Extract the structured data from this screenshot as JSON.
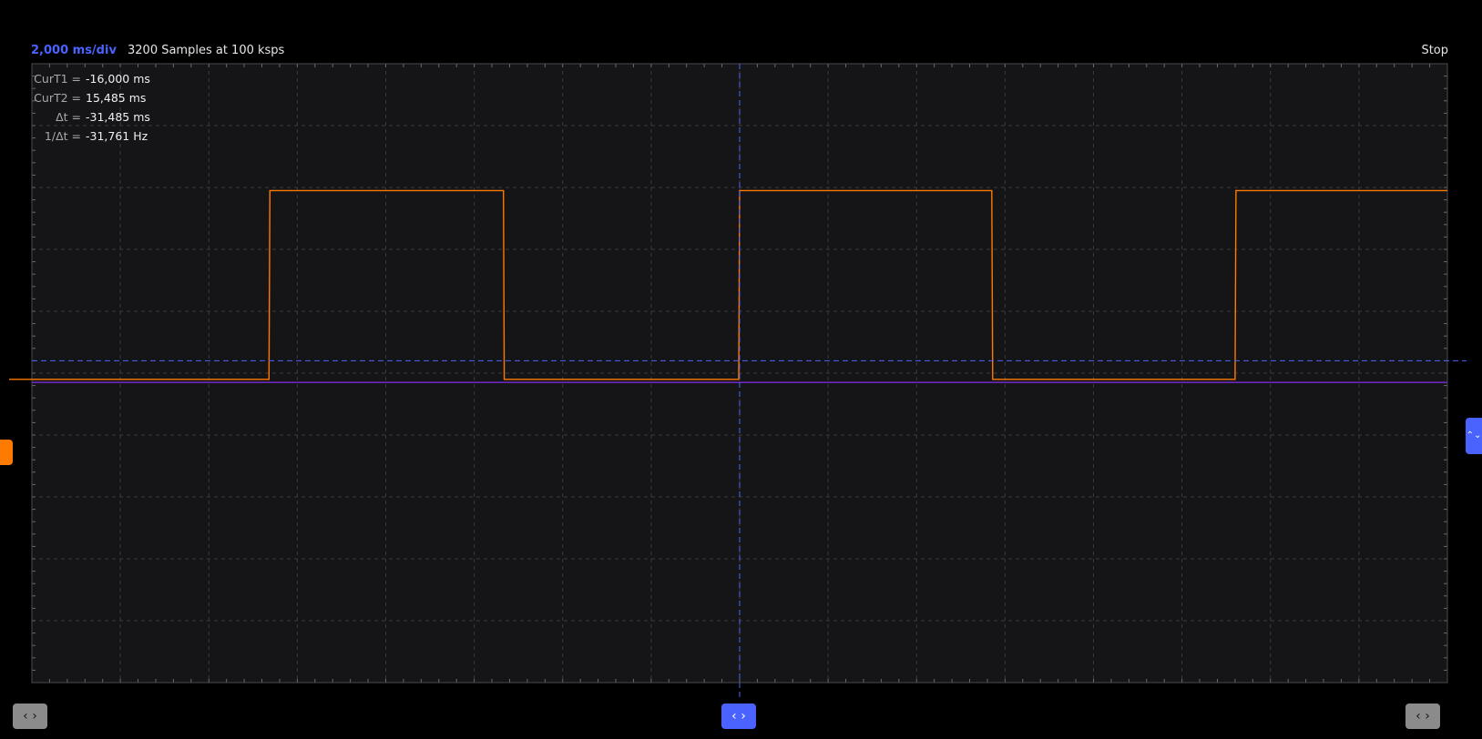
{
  "header": {
    "timebase": "2,000 ms/div",
    "samples": "3200 Samples at 100 ksps",
    "run_state": "Stop"
  },
  "cursor_readout": [
    {
      "label": "CurT1 =",
      "value": "-16,000 ms"
    },
    {
      "label": "CurT2 =",
      "value": "15,485 ms"
    },
    {
      "label": "Δt =",
      "value": "-31,485 ms"
    },
    {
      "label": "1/Δt =",
      "value": "-31,761 Hz"
    }
  ],
  "controls": {
    "left_nav": "‹ ›",
    "center_nav": "‹ ›",
    "right_nav": "‹ ›",
    "trigger_level": "⌃⌄"
  },
  "colors": {
    "background": "#000000",
    "plot_background": "#151518",
    "grid": "#3a3a3e",
    "channel1": "#ff7a00",
    "channel2": "#7a2bd6",
    "cursor": "#4a63ff"
  },
  "chart_data": {
    "type": "line",
    "x_divisions": 16,
    "y_divisions": 10,
    "grid": true,
    "x_unit_per_div": "2,000 ms/div",
    "series": [
      {
        "channel": "channel1",
        "color": "#ff7a00",
        "x_div": [
          0.0,
          2.68,
          2.69,
          5.33,
          5.34,
          7.99,
          8.0,
          10.85,
          10.86,
          13.6,
          13.61,
          16.0
        ],
        "y_div": [
          -0.1,
          -0.1,
          2.95,
          2.95,
          -0.1,
          -0.1,
          2.95,
          2.95,
          -0.1,
          -0.1,
          2.95,
          2.95
        ]
      },
      {
        "channel": "channel2",
        "color": "#7a2bd6",
        "x_div": [
          0.0,
          16.0
        ],
        "y_div": [
          -0.15,
          -0.15
        ]
      }
    ],
    "cursors": {
      "vertical_x_div": 8.0,
      "horizontal_y_div": 0.2
    }
  }
}
